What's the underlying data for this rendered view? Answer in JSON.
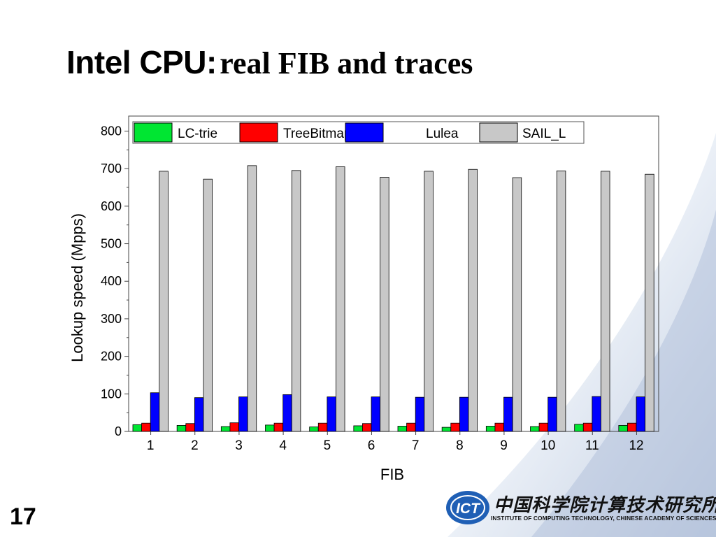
{
  "slide": {
    "title_part1": "Intel CPU:",
    "title_part2": "real FIB and traces",
    "page_number": "17"
  },
  "logo": {
    "mark_text": "ICT",
    "chinese_name": "中国科学院计算技术研究所",
    "english_name": "INSTITUTE OF COMPUTING TECHNOLOGY, CHINESE ACADEMY OF SCIENCES"
  },
  "chart_data": {
    "type": "bar",
    "title": "",
    "xlabel": "FIB",
    "ylabel": "Lookup speed (Mpps)",
    "categories": [
      "1",
      "2",
      "3",
      "4",
      "5",
      "6",
      "7",
      "8",
      "9",
      "10",
      "11",
      "12"
    ],
    "ylim": [
      0,
      840
    ],
    "yticks": [
      0,
      100,
      200,
      300,
      400,
      500,
      600,
      700,
      800
    ],
    "grid": false,
    "legend_position": "top",
    "series": [
      {
        "name": "LC-trie",
        "color": "#00e632",
        "values": [
          18,
          16,
          13,
          17,
          12,
          15,
          14,
          11,
          14,
          13,
          19,
          16
        ]
      },
      {
        "name": "TreeBitmap",
        "color": "#ff0000",
        "values": [
          22,
          21,
          23,
          22,
          22,
          21,
          22,
          22,
          22,
          22,
          22,
          22
        ]
      },
      {
        "name": "Lulea",
        "color": "#0000ff",
        "values": [
          103,
          90,
          92,
          98,
          92,
          92,
          91,
          91,
          91,
          91,
          93,
          92
        ]
      },
      {
        "name": "SAIL_L",
        "color": "#c8c8c8",
        "values": [
          693,
          672,
          708,
          695,
          705,
          677,
          693,
          698,
          676,
          694,
          693,
          685
        ]
      }
    ]
  }
}
